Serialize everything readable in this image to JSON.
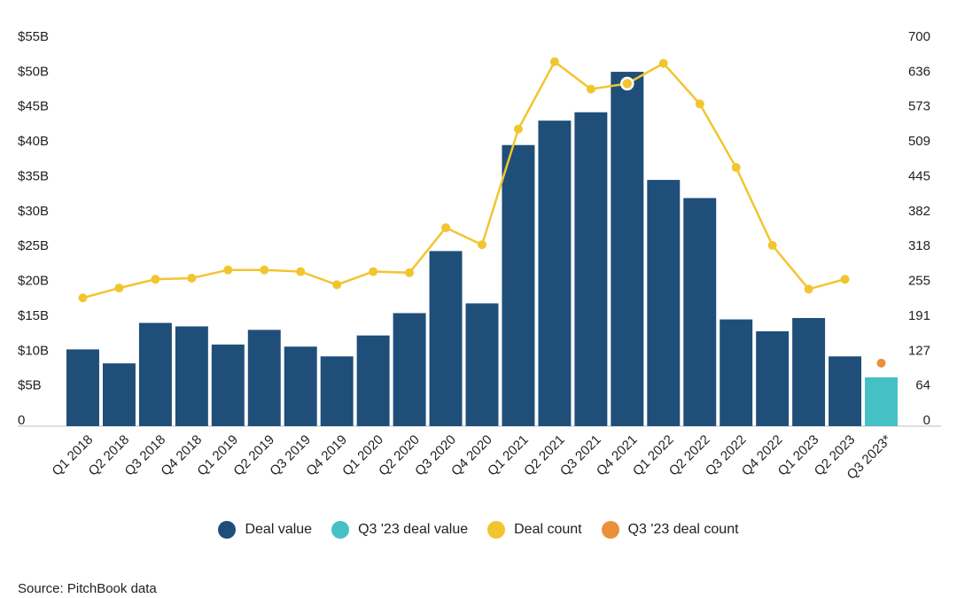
{
  "chart_data": {
    "type": "bar",
    "categories": [
      "Q1 2018",
      "Q2 2018",
      "Q3 2018",
      "Q4 2018",
      "Q1 2019",
      "Q2 2019",
      "Q3 2019",
      "Q4 2019",
      "Q1 2020",
      "Q2 2020",
      "Q3 2020",
      "Q4 2020",
      "Q1 2021",
      "Q2 2021",
      "Q3 2021",
      "Q4 2021",
      "Q1 2022",
      "Q2 2022",
      "Q3 2022",
      "Q4 2022",
      "Q1 2023",
      "Q2 2023",
      "Q3 2023*"
    ],
    "series": [
      {
        "name": "Deal value",
        "type": "bar",
        "axis": "left",
        "color": "#1f4e79",
        "values": [
          11.0,
          9.0,
          14.8,
          14.3,
          11.7,
          13.8,
          11.4,
          10.0,
          13.0,
          16.2,
          25.1,
          17.6,
          40.3,
          43.8,
          45.0,
          50.8,
          35.3,
          32.7,
          15.3,
          13.6,
          15.5,
          10.0,
          null
        ]
      },
      {
        "name": "Q3 '23 deal value",
        "type": "bar",
        "axis": "left",
        "color": "#45c1c6",
        "values": [
          null,
          null,
          null,
          null,
          null,
          null,
          null,
          null,
          null,
          null,
          null,
          null,
          null,
          null,
          null,
          null,
          null,
          null,
          null,
          null,
          null,
          null,
          7.0
        ]
      },
      {
        "name": "Deal count",
        "type": "line",
        "axis": "right",
        "color": "#f2c530",
        "values": [
          234,
          252,
          268,
          270,
          285,
          285,
          282,
          258,
          282,
          280,
          362,
          331,
          542,
          665,
          615,
          625,
          662,
          588,
          472,
          330,
          250,
          268,
          null
        ]
      },
      {
        "name": "Q3 '23 deal count",
        "type": "point",
        "axis": "right",
        "color": "#e8913a",
        "values": [
          null,
          null,
          null,
          null,
          null,
          null,
          null,
          null,
          null,
          null,
          null,
          null,
          null,
          null,
          null,
          null,
          null,
          null,
          null,
          null,
          null,
          null,
          115
        ]
      }
    ],
    "y_left": {
      "ticks": [
        "0",
        "$5B",
        "$10B",
        "$15B",
        "$20B",
        "$25B",
        "$30B",
        "$35B",
        "$40B",
        "$45B",
        "$50B",
        "$55B"
      ],
      "ylim": [
        0,
        55
      ]
    },
    "y_right": {
      "ticks": [
        "0",
        "64",
        "127",
        "191",
        "255",
        "318",
        "382",
        "445",
        "509",
        "573",
        "636",
        "700"
      ],
      "ylim": [
        0,
        700
      ]
    },
    "highlight_point_index": 15,
    "grid": false,
    "legend_position": "bottom"
  },
  "legend": [
    {
      "label": "Deal value",
      "color": "#1f4e79"
    },
    {
      "label": "Q3 '23 deal value",
      "color": "#45c1c6"
    },
    {
      "label": "Deal count",
      "color": "#f2c530"
    },
    {
      "label": "Q3 '23 deal count",
      "color": "#e8913a"
    }
  ],
  "source": "Source: PitchBook data"
}
